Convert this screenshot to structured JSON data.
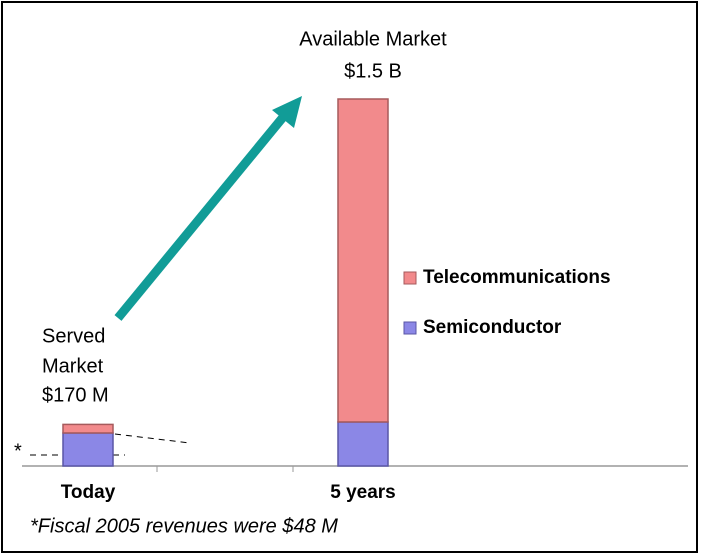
{
  "chart_data": {
    "type": "stacked_bar",
    "categories": [
      "Today",
      "5 years"
    ],
    "series": [
      {
        "name": "Semiconductor",
        "color": "#8b87e6",
        "values": [
          135,
          180
        ]
      },
      {
        "name": "Telecommunications",
        "color": "#f28a8c",
        "values": [
          35,
          1320
        ]
      }
    ],
    "annotations": [
      [
        "Served",
        "Market",
        "$170 M"
      ],
      [
        "Available Market",
        "$1.5 B"
      ]
    ],
    "marker": "*",
    "footnote": "*Fiscal 2005 revenues were $48 M"
  }
}
